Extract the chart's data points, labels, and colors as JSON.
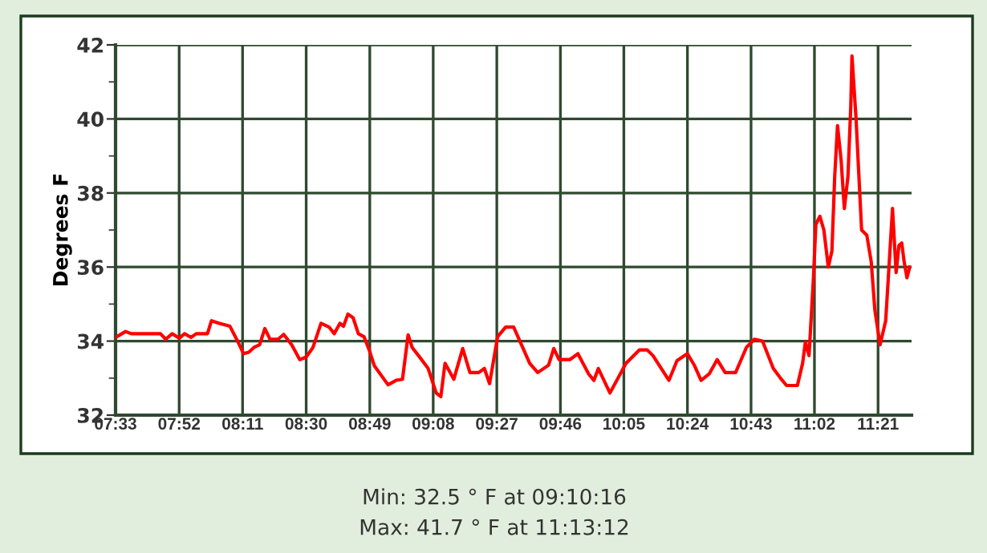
{
  "chart_data": {
    "type": "line",
    "ylabel": "Degrees F",
    "x": [
      7.55,
      7.6,
      7.628,
      7.774,
      7.8,
      7.832,
      7.868,
      7.894,
      7.926,
      7.952,
      8.008,
      8.028,
      8.068,
      8.12,
      8.16,
      8.188,
      8.214,
      8.24,
      8.268,
      8.294,
      8.32,
      8.36,
      8.388,
      8.428,
      8.468,
      8.5,
      8.534,
      8.574,
      8.614,
      8.64,
      8.668,
      8.686,
      8.708,
      8.734,
      8.76,
      8.788,
      8.814,
      8.84,
      8.908,
      8.948,
      8.98,
      9.008,
      9.028,
      9.068,
      9.108,
      9.148,
      9.171,
      9.192,
      9.236,
      9.28,
      9.316,
      9.36,
      9.388,
      9.414,
      9.454,
      9.494,
      9.534,
      9.614,
      9.654,
      9.708,
      9.734,
      9.76,
      9.814,
      9.854,
      9.908,
      9.934,
      9.956,
      10.014,
      10.094,
      10.16,
      10.2,
      10.228,
      10.308,
      10.348,
      10.4,
      10.436,
      10.468,
      10.508,
      10.548,
      10.588,
      10.64,
      10.694,
      10.734,
      10.774,
      10.828,
      10.868,
      10.894,
      10.948,
      10.974,
      10.988,
      11.006,
      11.028,
      11.04,
      11.06,
      11.08,
      11.102,
      11.12,
      11.134,
      11.148,
      11.166,
      11.182,
      11.2,
      11.214,
      11.22,
      11.24,
      11.268,
      11.294,
      11.316,
      11.334,
      11.36,
      11.388,
      11.406,
      11.422,
      11.44,
      11.454,
      11.468,
      11.48,
      11.494,
      11.508
    ],
    "series": [
      {
        "color": "#ff0000",
        "values": [
          34.1,
          34.26,
          34.2,
          34.2,
          34.05,
          34.2,
          34.08,
          34.2,
          34.1,
          34.2,
          34.2,
          34.55,
          34.48,
          34.4,
          33.98,
          33.66,
          33.7,
          33.83,
          33.9,
          34.34,
          34.05,
          34.05,
          34.18,
          33.9,
          33.5,
          33.57,
          33.83,
          34.48,
          34.38,
          34.2,
          34.48,
          34.4,
          34.73,
          34.63,
          34.2,
          34.12,
          33.76,
          33.33,
          32.82,
          32.94,
          32.97,
          34.17,
          33.83,
          33.55,
          33.26,
          32.6,
          32.5,
          33.4,
          32.97,
          33.8,
          33.15,
          33.15,
          33.26,
          32.85,
          34.12,
          34.38,
          34.38,
          33.4,
          33.15,
          33.35,
          33.8,
          33.5,
          33.5,
          33.66,
          33.11,
          32.94,
          33.26,
          32.6,
          33.4,
          33.76,
          33.76,
          33.61,
          32.94,
          33.47,
          33.66,
          33.33,
          32.94,
          33.11,
          33.5,
          33.15,
          33.15,
          33.83,
          34.05,
          34.0,
          33.26,
          32.97,
          32.8,
          32.8,
          33.4,
          33.98,
          33.61,
          35.71,
          37.15,
          37.37,
          37.0,
          36.0,
          36.43,
          38.45,
          39.82,
          38.88,
          37.58,
          38.45,
          40.33,
          41.7,
          40.04,
          37.0,
          36.86,
          36.14,
          34.84,
          33.9,
          34.55,
          36.14,
          37.58,
          35.85,
          36.58,
          36.65,
          36.14,
          35.71,
          36.0
        ]
      }
    ],
    "xlim": [
      7.55,
      11.517
    ],
    "xticks": [
      {
        "value": 7.55,
        "label": "07:33"
      },
      {
        "value": 7.867,
        "label": "07:52"
      },
      {
        "value": 8.183,
        "label": "08:11"
      },
      {
        "value": 8.5,
        "label": "08:30"
      },
      {
        "value": 8.817,
        "label": "08:49"
      },
      {
        "value": 9.133,
        "label": "09:08"
      },
      {
        "value": 9.45,
        "label": "09:27"
      },
      {
        "value": 9.767,
        "label": "09:46"
      },
      {
        "value": 10.083,
        "label": "10:05"
      },
      {
        "value": 10.4,
        "label": "10:24"
      },
      {
        "value": 10.717,
        "label": "10:43"
      },
      {
        "value": 11.033,
        "label": "11:02"
      },
      {
        "value": 11.35,
        "label": "11:21"
      }
    ],
    "ylim": [
      32,
      42
    ],
    "yticks": [
      32,
      {
        "value": 33,
        "label": null
      },
      34,
      {
        "value": 35,
        "label": null
      },
      36,
      {
        "value": 37,
        "label": null
      },
      38,
      {
        "value": 39,
        "label": null
      },
      40,
      {
        "value": 41,
        "label": null
      },
      42
    ],
    "grid": true,
    "marker": "none",
    "line_style": "solid",
    "legend": false,
    "annotations": [
      "Min: 32.5 ° F at 09:10:16",
      "Max: 41.7 ° F at 11:13:12"
    ]
  }
}
